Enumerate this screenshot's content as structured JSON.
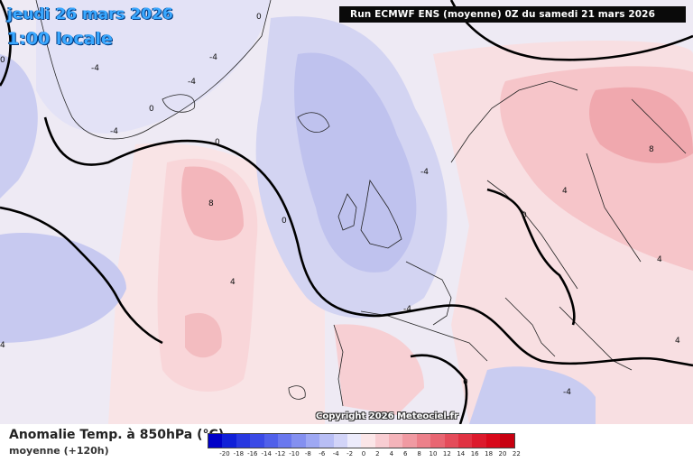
{
  "header": {
    "date": "jeudi 26 mars 2026",
    "time": "1:00 locale",
    "run": "Run ECMWF ENS (moyenne) 0Z du samedi 21 mars 2026"
  },
  "map": {
    "contour_labels": [
      "0",
      "-4",
      "-4",
      "-4",
      "-4",
      "-4",
      "0",
      "0",
      "8",
      "4",
      "0",
      "-4",
      "0",
      "4",
      "8",
      "4",
      "0",
      "4",
      "4",
      "-4",
      "0"
    ],
    "colors": {
      "cold_strong": "#aeb4ec",
      "cold_mid": "#c9ccf2",
      "cold_light": "#e2e2f6",
      "neutral": "#f4f2f8",
      "warm_light": "#fbe0e2",
      "warm_mid": "#f6c0c4",
      "warm_strong": "#f0a2a8",
      "coast": "#222222",
      "zero_line": "#000000"
    }
  },
  "copyright": "Copyright 2026 Meteociel.fr",
  "legend": {
    "title": "Anomalie Temp. à 850hPa (°C)",
    "subtitle": "moyenne   (+120h)",
    "ticks": [
      "-20",
      "-18",
      "-16",
      "-14",
      "-12",
      "-10",
      "-8",
      "-6",
      "-4",
      "-2",
      "0",
      "2",
      "4",
      "6",
      "8",
      "10",
      "12",
      "14",
      "16",
      "18",
      "20",
      "22"
    ],
    "colors": [
      "#0000c8",
      "#1020d8",
      "#2838e0",
      "#3a4ae6",
      "#5060ea",
      "#6a78ee",
      "#8490f0",
      "#9ea8f3",
      "#b8bef5",
      "#d2d4f8",
      "#ecebfb",
      "#fbe6e8",
      "#f8cdd2",
      "#f4b4ba",
      "#f09aa2",
      "#ec808a",
      "#e86672",
      "#e44c5a",
      "#e03242",
      "#dc1a2c",
      "#d8081a",
      "#c80010"
    ]
  }
}
